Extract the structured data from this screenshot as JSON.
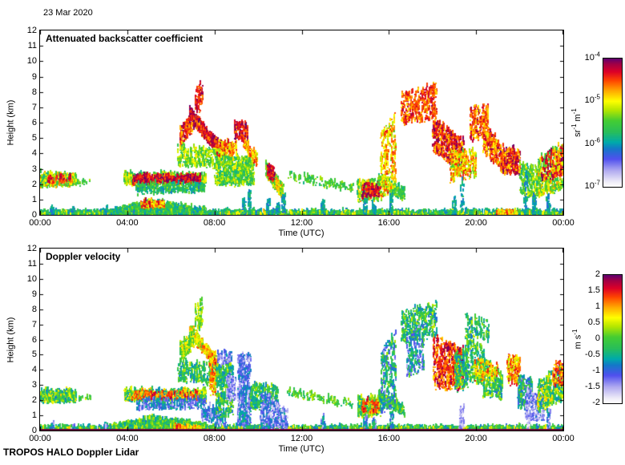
{
  "header": {
    "date": "23 Mar 2020"
  },
  "footer": {
    "instrument": "TROPOS HALO Doppler Lidar"
  },
  "colormap": {
    "description": "shared rainbow colormap, low=white/lavender, mid=teal/green/yellow, high=red/dark purple",
    "stops": [
      [
        0.0,
        "#ffffff"
      ],
      [
        0.04,
        "#f0eef8"
      ],
      [
        0.13,
        "#b0aaf0"
      ],
      [
        0.22,
        "#5050ee"
      ],
      [
        0.3,
        "#1478c8"
      ],
      [
        0.35,
        "#00aaaa"
      ],
      [
        0.43,
        "#28be5a"
      ],
      [
        0.52,
        "#46cd32"
      ],
      [
        0.6,
        "#b4e600"
      ],
      [
        0.67,
        "#ffff00"
      ],
      [
        0.75,
        "#ffaa00"
      ],
      [
        0.83,
        "#ff4600"
      ],
      [
        0.9,
        "#dc0028"
      ],
      [
        0.96,
        "#a00046"
      ],
      [
        1.0,
        "#64006e"
      ]
    ]
  },
  "chart_data": [
    {
      "type": "heatmap",
      "title": "Attenuated backscatter coefficient",
      "xlabel": "Time (UTC)",
      "ylabel": "Height (km)",
      "x_range_hours": [
        0,
        24
      ],
      "y_range_km": [
        0,
        12
      ],
      "x_ticks": [
        "00:00",
        "04:00",
        "08:00",
        "12:00",
        "16:00",
        "20:00",
        "00:00"
      ],
      "y_ticks": [
        "12",
        "11",
        "10",
        "9",
        "8",
        "7",
        "6",
        "5",
        "4",
        "3",
        "2",
        "1",
        "0"
      ],
      "colorbar": {
        "scale": "log10",
        "range": [
          "1e-7",
          "1e-4"
        ],
        "tick_labels": [
          {
            "base": "10",
            "exp": "-4"
          },
          {
            "base": "10",
            "exp": "-5"
          },
          {
            "base": "10",
            "exp": "-6"
          },
          {
            "base": "10",
            "exp": "-7"
          }
        ],
        "unit_parts": [
          {
            "t": "sr"
          },
          {
            "t": "-1",
            "sup": true
          },
          {
            "t": " m"
          },
          {
            "t": "-1",
            "sup": true
          }
        ]
      },
      "value_mapping": "color fraction v: 0 -> 1e-7 sr-1 m-1, 1 -> 1e-4 sr-1 m-1 (log scale)",
      "features_format": [
        "t_start_h",
        "t_end_h",
        "base_km_start",
        "top_km_start",
        "base_km_end",
        "top_km_end",
        "count",
        "v_min",
        "v_max"
      ],
      "features": [
        [
          0,
          24,
          0,
          0.18,
          0,
          0.18,
          2400,
          0.3,
          0.5
        ],
        [
          0,
          24,
          0,
          0.12,
          0,
          0.12,
          600,
          0.42,
          0.68
        ],
        [
          0,
          1.65,
          1.85,
          2.65,
          1.9,
          2.55,
          500,
          0.38,
          0.78
        ],
        [
          0.2,
          1.4,
          2.05,
          2.5,
          2.1,
          2.5,
          40,
          0.8,
          0.95
        ],
        [
          1.7,
          2.35,
          2.0,
          2.25,
          2.0,
          2.25,
          16,
          0.44,
          0.56
        ],
        [
          3.2,
          5.2,
          0,
          0.2,
          0,
          0.85,
          800,
          0.32,
          0.58
        ],
        [
          5.2,
          7.6,
          0,
          0.85,
          0,
          0.3,
          800,
          0.32,
          0.58
        ],
        [
          4.6,
          5.7,
          0.45,
          0.85,
          0.5,
          0.85,
          120,
          0.58,
          0.92
        ],
        [
          3.85,
          7.6,
          1.95,
          2.65,
          2.0,
          2.6,
          800,
          0.42,
          0.72
        ],
        [
          4.25,
          7.35,
          2.05,
          2.5,
          2.1,
          2.45,
          550,
          0.82,
          1.0
        ],
        [
          4.4,
          7.55,
          1.35,
          2.0,
          1.5,
          2.05,
          280,
          0.33,
          0.55
        ],
        [
          6.85,
          8.15,
          6.2,
          6.9,
          3.9,
          4.7,
          450,
          0.76,
          1.0
        ],
        [
          6.4,
          7.05,
          4.5,
          5.7,
          5.5,
          6.5,
          160,
          0.72,
          0.98
        ],
        [
          7.1,
          7.45,
          6.6,
          8.2,
          6.8,
          8.7,
          70,
          0.78,
          0.95
        ],
        [
          6.3,
          8.3,
          3.2,
          4.5,
          3.0,
          4.3,
          280,
          0.42,
          0.68
        ],
        [
          8.0,
          9.8,
          1.9,
          4.0,
          2.0,
          3.6,
          650,
          0.38,
          0.66
        ],
        [
          8.1,
          9.0,
          3.8,
          4.7,
          3.9,
          4.7,
          130,
          0.6,
          0.9
        ],
        [
          8.9,
          9.5,
          4.9,
          6.1,
          4.8,
          5.9,
          140,
          0.78,
          1.0
        ],
        [
          9.3,
          9.95,
          4.3,
          5.0,
          3.2,
          3.9,
          100,
          0.64,
          0.88
        ],
        [
          10.35,
          11.15,
          2.5,
          3.3,
          1.0,
          1.9,
          300,
          0.42,
          0.8
        ],
        [
          10.4,
          10.75,
          2.5,
          3.2,
          2.2,
          3.0,
          60,
          0.84,
          1.0
        ],
        [
          11.3,
          14.35,
          2.3,
          2.75,
          1.5,
          1.95,
          110,
          0.42,
          0.58
        ],
        [
          14.55,
          15.6,
          0.9,
          2.15,
          1.0,
          2.25,
          300,
          0.4,
          0.75
        ],
        [
          14.75,
          15.55,
          1.1,
          1.95,
          1.2,
          2.05,
          100,
          0.82,
          1.0
        ],
        [
          15.5,
          16.7,
          1.9,
          2.6,
          0.9,
          1.6,
          240,
          0.4,
          0.62
        ],
        [
          15.6,
          16.3,
          1.0,
          5.2,
          1.8,
          6.8,
          260,
          0.56,
          0.85
        ],
        [
          16.55,
          18.2,
          5.8,
          7.8,
          6.2,
          8.5,
          340,
          0.72,
          0.92
        ],
        [
          18.0,
          19.45,
          4.2,
          6.2,
          2.6,
          4.8,
          520,
          0.72,
          1.0
        ],
        [
          18.8,
          20.0,
          2.2,
          4.0,
          2.4,
          4.2,
          240,
          0.55,
          0.85
        ],
        [
          19.7,
          20.55,
          4.8,
          6.9,
          5.0,
          7.1,
          220,
          0.68,
          0.94
        ],
        [
          20.3,
          21.25,
          4.0,
          6.0,
          2.8,
          4.4,
          260,
          0.66,
          0.95
        ],
        [
          21.1,
          22.0,
          2.7,
          4.3,
          2.6,
          4.2,
          260,
          0.7,
          1.0
        ],
        [
          22.0,
          22.9,
          1.3,
          3.3,
          1.0,
          3.0,
          260,
          0.4,
          0.66
        ],
        [
          22.85,
          24,
          1.2,
          3.7,
          1.7,
          4.6,
          420,
          0.42,
          0.75
        ],
        [
          23.0,
          24,
          2.2,
          4.1,
          2.5,
          4.5,
          80,
          0.8,
          1.0
        ],
        [
          23.5,
          24,
          2.4,
          4.2,
          2.6,
          4.4,
          80,
          0.64,
          0.9
        ],
        [
          20.9,
          21.85,
          0,
          0.14,
          0,
          0.14,
          110,
          0.58,
          0.85
        ]
      ],
      "spikes_format": [
        "t_h",
        "top_km"
      ],
      "spikes": [
        [
          0.55,
          0.35
        ],
        [
          1.5,
          0.3
        ],
        [
          3.0,
          0.35
        ],
        [
          9.35,
          1.0
        ],
        [
          9.6,
          1.5
        ],
        [
          10.45,
          0.9
        ],
        [
          10.9,
          0.6
        ],
        [
          11.15,
          1.2
        ],
        [
          12.95,
          0.9
        ],
        [
          14.9,
          0.9
        ],
        [
          15.3,
          0.7
        ],
        [
          16.1,
          1.3
        ],
        [
          19.0,
          1.1
        ],
        [
          19.35,
          2.2
        ],
        [
          22.25,
          2.8
        ],
        [
          22.65,
          1.3
        ],
        [
          23.3,
          1.2
        ]
      ],
      "spike_v": [
        0.3,
        0.4
      ]
    },
    {
      "type": "heatmap",
      "title": "Doppler velocity",
      "xlabel": "Time (UTC)",
      "ylabel": "Height (km)",
      "x_range_hours": [
        0,
        24
      ],
      "y_range_km": [
        0,
        12
      ],
      "x_ticks": [
        "00:00",
        "04:00",
        "08:00",
        "12:00",
        "16:00",
        "20:00",
        "00:00"
      ],
      "y_ticks": [
        "12",
        "11",
        "10",
        "9",
        "8",
        "7",
        "6",
        "5",
        "4",
        "3",
        "2",
        "1",
        "0"
      ],
      "colorbar": {
        "scale": "linear",
        "range": [
          "-2",
          "2"
        ],
        "tick_labels": [
          {
            "base": "2"
          },
          {
            "base": "1.5"
          },
          {
            "base": "1"
          },
          {
            "base": "0.5"
          },
          {
            "base": "0"
          },
          {
            "base": "-0.5"
          },
          {
            "base": "-1"
          },
          {
            "base": "-1.5"
          },
          {
            "base": "-2"
          }
        ],
        "unit_parts": [
          {
            "t": "m s"
          },
          {
            "t": "-1",
            "sup": true
          }
        ]
      },
      "value_mapping": "color fraction v: 0 -> -2 m/s, 0.5 -> 0 m/s, 1 -> +2 m/s",
      "baseline": {
        "height_km": 0,
        "color": "#66003a",
        "note": "dark ground-return line along 0 km"
      },
      "features_format": [
        "t_start_h",
        "t_end_h",
        "base_km_start",
        "top_km_start",
        "base_km_end",
        "top_km_end",
        "count",
        "v_min",
        "v_max"
      ],
      "features": [
        [
          0,
          24,
          0,
          0.18,
          0,
          0.18,
          2400,
          0.3,
          0.55
        ],
        [
          0,
          24,
          0,
          0.12,
          0,
          0.12,
          400,
          0.45,
          0.7
        ],
        [
          0,
          1.65,
          1.85,
          2.65,
          1.9,
          2.55,
          500,
          0.32,
          0.68
        ],
        [
          1.7,
          2.35,
          2.0,
          2.25,
          2.0,
          2.25,
          16,
          0.4,
          0.6
        ],
        [
          3.2,
          5.2,
          0,
          0.2,
          0,
          0.85,
          800,
          0.34,
          0.62
        ],
        [
          5.2,
          7.6,
          0,
          0.85,
          0,
          0.3,
          800,
          0.34,
          0.62
        ],
        [
          6.1,
          7.3,
          0,
          0.3,
          0,
          0.22,
          90,
          0.62,
          0.86
        ],
        [
          3.85,
          7.6,
          1.95,
          2.65,
          2.0,
          2.6,
          800,
          0.3,
          0.72
        ],
        [
          4.2,
          7.3,
          2.0,
          2.5,
          2.05,
          2.5,
          150,
          0.72,
          0.92
        ],
        [
          4.4,
          7.55,
          1.35,
          2.0,
          1.5,
          2.05,
          280,
          0.14,
          0.4
        ],
        [
          6.85,
          8.15,
          6.2,
          6.9,
          3.9,
          4.7,
          450,
          0.55,
          0.82
        ],
        [
          6.4,
          7.05,
          4.5,
          5.7,
          5.5,
          6.5,
          160,
          0.42,
          0.7
        ],
        [
          7.1,
          7.45,
          6.6,
          8.2,
          6.8,
          8.7,
          70,
          0.42,
          0.65
        ],
        [
          6.3,
          8.3,
          3.2,
          4.5,
          3.0,
          4.3,
          280,
          0.32,
          0.6
        ],
        [
          7.75,
          8.05,
          2.4,
          5.0,
          2.4,
          5.0,
          100,
          0.6,
          0.88
        ],
        [
          7.4,
          8.5,
          0.7,
          1.9,
          0.2,
          1.2,
          140,
          0.1,
          0.35
        ],
        [
          8.05,
          8.85,
          0.8,
          4.3,
          1.0,
          4.5,
          300,
          0.3,
          0.6
        ],
        [
          8.1,
          8.8,
          4.3,
          5.1,
          4.4,
          5.2,
          60,
          0.12,
          0.3
        ],
        [
          8.55,
          8.95,
          2.0,
          3.7,
          2.0,
          3.5,
          140,
          0.05,
          0.25
        ],
        [
          9.05,
          9.65,
          0.3,
          5.0,
          0.4,
          5.1,
          450,
          0.08,
          0.35
        ],
        [
          9.6,
          10.9,
          1.4,
          3.0,
          1.6,
          2.9,
          260,
          0.32,
          0.6
        ],
        [
          10.1,
          11.35,
          0,
          2.6,
          0,
          1.4,
          380,
          0.06,
          0.35
        ],
        [
          11.3,
          14.35,
          2.3,
          2.75,
          1.5,
          1.95,
          110,
          0.4,
          0.6
        ],
        [
          14.55,
          15.6,
          0.9,
          2.15,
          1.0,
          2.25,
          300,
          0.34,
          0.68
        ],
        [
          14.75,
          15.55,
          1.1,
          1.95,
          1.2,
          2.05,
          60,
          0.72,
          0.9
        ],
        [
          15.5,
          16.7,
          1.9,
          2.6,
          0.9,
          1.6,
          240,
          0.34,
          0.6
        ],
        [
          15.6,
          16.3,
          1.0,
          5.2,
          1.8,
          6.8,
          260,
          0.18,
          0.55
        ],
        [
          16.55,
          18.2,
          5.8,
          7.8,
          6.2,
          8.5,
          340,
          0.28,
          0.6
        ],
        [
          16.8,
          17.6,
          3.5,
          6.6,
          4.0,
          7.0,
          200,
          0.15,
          0.5
        ],
        [
          18.0,
          19.4,
          2.8,
          6.3,
          2.6,
          5.4,
          520,
          0.72,
          0.97
        ],
        [
          19.0,
          19.6,
          2.6,
          5.0,
          2.8,
          5.2,
          160,
          0.3,
          0.6
        ],
        [
          19.5,
          20.35,
          3.4,
          6.6,
          3.0,
          5.2,
          260,
          0.3,
          0.62
        ],
        [
          20.3,
          21.2,
          2.2,
          4.7,
          2.0,
          3.7,
          240,
          0.3,
          0.62
        ],
        [
          19.9,
          21.0,
          3.3,
          4.7,
          3.2,
          4.5,
          100,
          0.58,
          0.85
        ],
        [
          19.5,
          20.6,
          6.3,
          7.7,
          5.8,
          7.2,
          110,
          0.3,
          0.58
        ],
        [
          21.4,
          22.0,
          3.1,
          5.0,
          3.0,
          4.8,
          160,
          0.6,
          0.9
        ],
        [
          21.9,
          22.55,
          1.5,
          3.6,
          1.3,
          3.3,
          220,
          0.22,
          0.55
        ],
        [
          22.25,
          23.1,
          0.8,
          2.7,
          0.6,
          2.2,
          300,
          0.04,
          0.28
        ],
        [
          22.8,
          24,
          1.2,
          3.0,
          2.0,
          4.5,
          420,
          0.3,
          0.72
        ],
        [
          23.5,
          24,
          2.8,
          4.4,
          3.0,
          4.6,
          70,
          0.72,
          0.92
        ],
        [
          22.3,
          22.45,
          0,
          1.6,
          0,
          1.6,
          40,
          0.04,
          0.2
        ],
        [
          19.2,
          19.45,
          0,
          1.6,
          0,
          1.6,
          50,
          0.04,
          0.22
        ]
      ],
      "spikes_format": [
        "t_h",
        "top_km"
      ],
      "spikes": [
        [
          0.55,
          0.35
        ],
        [
          1.5,
          0.3
        ],
        [
          3.0,
          0.35
        ],
        [
          9.35,
          1.0
        ],
        [
          10.45,
          0.9
        ],
        [
          12.95,
          0.9
        ],
        [
          14.9,
          0.9
        ],
        [
          15.3,
          0.7
        ],
        [
          16.1,
          1.3
        ],
        [
          23.3,
          1.2
        ]
      ],
      "spike_v": [
        0.08,
        0.42
      ]
    }
  ]
}
